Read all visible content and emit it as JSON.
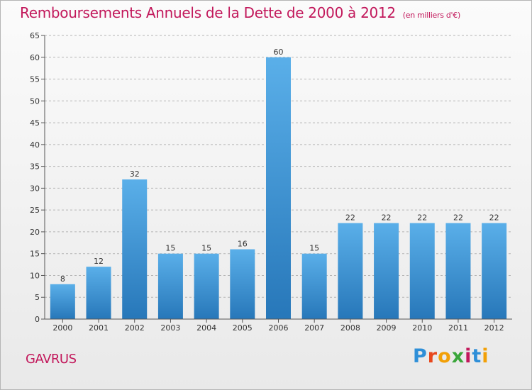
{
  "title": "Remboursements Annuels de la Dette de 2000 à 2012",
  "unit": "(en milliers d'€)",
  "city": "GAVRUS",
  "logo": {
    "text": "Proxiti",
    "letters": [
      {
        "ch": "P",
        "color": "#2e8fd8"
      },
      {
        "ch": "r",
        "color": "#e8471c"
      },
      {
        "ch": "o",
        "color": "#f2a007"
      },
      {
        "ch": "x",
        "color": "#3aa63a"
      },
      {
        "ch": "i",
        "color": "#c2185b"
      },
      {
        "ch": "t",
        "color": "#2e8fd8"
      },
      {
        "ch": "i",
        "color": "#f2a007"
      }
    ]
  },
  "colors": {
    "title": "#c2185b",
    "bar_top": "#5aafe9",
    "bar_bottom": "#2777b9",
    "grid": "#b5b5b5",
    "axis": "#555555",
    "text": "#333333"
  },
  "chart_data": {
    "type": "bar",
    "title": "Remboursements Annuels de la Dette de 2000 à 2012",
    "subtitle": "(en milliers d'€)",
    "categories": [
      "2000",
      "2001",
      "2002",
      "2003",
      "2004",
      "2005",
      "2006",
      "2007",
      "2008",
      "2009",
      "2010",
      "2011",
      "2012"
    ],
    "values": [
      8,
      12,
      32,
      15,
      15,
      16,
      60,
      15,
      22,
      22,
      22,
      22,
      22
    ],
    "ylim": [
      0,
      65
    ],
    "yticks": [
      0,
      5,
      10,
      15,
      20,
      25,
      30,
      35,
      40,
      45,
      50,
      55,
      60,
      65
    ],
    "grid": true,
    "data_labels": true
  }
}
